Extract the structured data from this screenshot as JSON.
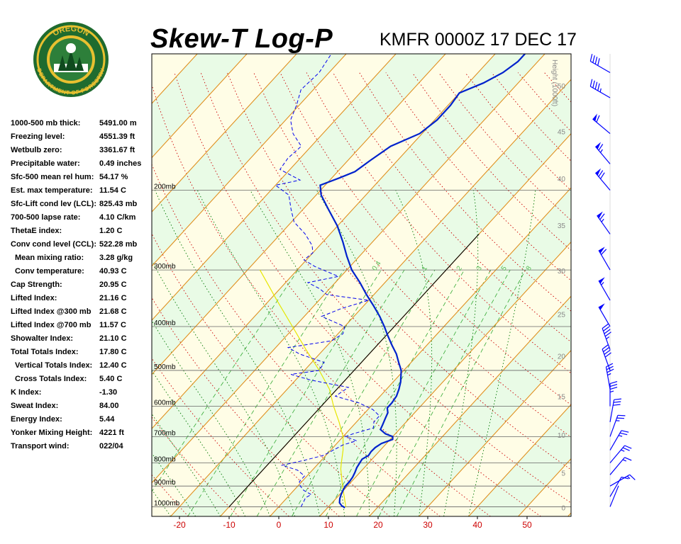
{
  "header": {
    "title": "Skew-T Log-P",
    "station": "KMFR 0000Z 17 DEC 17",
    "logo_top_text": "OREGON",
    "logo_bottom_text": "DEPARTMENT OF FORESTRY"
  },
  "indices": [
    {
      "label": "1000-500 mb thick:",
      "value": "5491.00 m"
    },
    {
      "label": "Freezing level:",
      "value": "4551.39 ft"
    },
    {
      "label": "Wetbulb zero:",
      "value": "3361.67 ft"
    },
    {
      "label": "Precipitable water:",
      "value": "0.49 inches"
    },
    {
      "label": "Sfc-500 mean rel hum:",
      "value": "54.17 %"
    },
    {
      "label": "Est. max temperature:",
      "value": "11.54 C"
    },
    {
      "label": "Sfc-Lift cond lev (LCL):",
      "value": "825.43 mb"
    },
    {
      "label": "700-500 lapse rate:",
      "value": "4.10 C/km"
    },
    {
      "label": "ThetaE index:",
      "value": "1.20 C"
    },
    {
      "label": "Conv cond level (CCL):",
      "value": "522.28 mb"
    },
    {
      "label": "Mean mixing ratio:",
      "value": "3.28 g/kg",
      "indent": true
    },
    {
      "label": "Conv temperature:",
      "value": "40.93 C",
      "indent": true
    },
    {
      "label": "Cap Strength:",
      "value": "20.95 C"
    },
    {
      "label": "Lifted Index:",
      "value": "21.16 C"
    },
    {
      "label": "Lifted Index @300 mb",
      "value": "21.68 C"
    },
    {
      "label": "Lifted Index @700 mb",
      "value": "11.57 C"
    },
    {
      "label": "Showalter Index:",
      "value": "21.10 C"
    },
    {
      "label": "Total Totals Index:",
      "value": "17.80 C"
    },
    {
      "label": "Vertical Totals Index:",
      "value": "12.40 C",
      "indent": true
    },
    {
      "label": "Cross Totals Index:",
      "value": "5.40 C",
      "indent": true
    },
    {
      "label": "K Index:",
      "value": "-1.30"
    },
    {
      "label": "Sweat Index:",
      "value": "84.00"
    },
    {
      "label": "Energy Index:",
      "value": "5.44"
    },
    {
      "label": "Yonker Mixing Height:",
      "value": "4221 ft"
    },
    {
      "label": "Transport wind:",
      "value": "022/04"
    }
  ],
  "chart_data": {
    "type": "skew-t log-p",
    "x_ticks": [
      -20,
      -10,
      0,
      10,
      20,
      30,
      40,
      50
    ],
    "pressure_levels": [
      {
        "p": 1000,
        "label": "1000mb"
      },
      {
        "p": 900,
        "label": "900mb"
      },
      {
        "p": 800,
        "label": "800mb"
      },
      {
        "p": 700,
        "label": "700mb"
      },
      {
        "p": 600,
        "label": "600mb"
      },
      {
        "p": 500,
        "label": "500mb"
      },
      {
        "p": 400,
        "label": "400mb"
      },
      {
        "p": 300,
        "label": "300mb"
      },
      {
        "p": 200,
        "label": "200mb"
      }
    ],
    "height_axis": {
      "label": "Height (1000ft)",
      "ticks": [
        {
          "p": 1008,
          "label": "0"
        },
        {
          "p": 845,
          "label": "5"
        },
        {
          "p": 696,
          "label": "10"
        },
        {
          "p": 572,
          "label": "15"
        },
        {
          "p": 466,
          "label": "20"
        },
        {
          "p": 377,
          "label": "25"
        },
        {
          "p": 302,
          "label": "30"
        },
        {
          "p": 240,
          "label": "35"
        },
        {
          "p": 189,
          "label": "40"
        },
        {
          "p": 149,
          "label": "45"
        },
        {
          "p": 118,
          "label": "50"
        }
      ]
    },
    "mixing_ratio_labels": [
      {
        "label": "0.4",
        "t": -24,
        "p": 302
      },
      {
        "label": "1",
        "t": -14,
        "p": 302
      },
      {
        "label": "2",
        "t": -7,
        "p": 302
      },
      {
        "label": "3",
        "t": -3,
        "p": 302
      },
      {
        "label": "5",
        "t": 2,
        "p": 302
      },
      {
        "label": "8",
        "t": 7,
        "p": 302
      }
    ],
    "temperature_profile": [
      {
        "p": 1005,
        "t": 13.5
      },
      {
        "p": 995,
        "t": 12.5
      },
      {
        "p": 980,
        "t": 11.5
      },
      {
        "p": 960,
        "t": 10.8
      },
      {
        "p": 940,
        "t": 10.3
      },
      {
        "p": 915,
        "t": 9.8
      },
      {
        "p": 900,
        "t": 9.6
      },
      {
        "p": 880,
        "t": 9.6
      },
      {
        "p": 860,
        "t": 9.4
      },
      {
        "p": 840,
        "t": 9.0
      },
      {
        "p": 820,
        "t": 8.5
      },
      {
        "p": 800,
        "t": 8.2
      },
      {
        "p": 785,
        "t": 8.0
      },
      {
        "p": 770,
        "t": 8.6
      },
      {
        "p": 755,
        "t": 8.4
      },
      {
        "p": 740,
        "t": 8.5
      },
      {
        "p": 725,
        "t": 9.0
      },
      {
        "p": 710,
        "t": 10.5
      },
      {
        "p": 700,
        "t": 10.0
      },
      {
        "p": 690,
        "t": 8.0
      },
      {
        "p": 675,
        "t": 6.2
      },
      {
        "p": 660,
        "t": 5.8
      },
      {
        "p": 640,
        "t": 5.2
      },
      {
        "p": 620,
        "t": 4.6
      },
      {
        "p": 605,
        "t": 3.6
      },
      {
        "p": 590,
        "t": 3.6
      },
      {
        "p": 570,
        "t": 3.3
      },
      {
        "p": 550,
        "t": 2.5
      },
      {
        "p": 530,
        "t": 1.5
      },
      {
        "p": 500,
        "t": -0.5
      },
      {
        "p": 480,
        "t": -2.5
      },
      {
        "p": 460,
        "t": -4.5
      },
      {
        "p": 440,
        "t": -7.0
      },
      {
        "p": 420,
        "t": -9.5
      },
      {
        "p": 400,
        "t": -12.0
      },
      {
        "p": 380,
        "t": -14.8
      },
      {
        "p": 360,
        "t": -18.0
      },
      {
        "p": 340,
        "t": -21.5
      },
      {
        "p": 320,
        "t": -25.0
      },
      {
        "p": 300,
        "t": -29.0
      },
      {
        "p": 280,
        "t": -32.5
      },
      {
        "p": 260,
        "t": -36.0
      },
      {
        "p": 240,
        "t": -40.0
      },
      {
        "p": 220,
        "t": -45.0
      },
      {
        "p": 205,
        "t": -49.0
      },
      {
        "p": 195,
        "t": -51.0
      },
      {
        "p": 188,
        "t": -48.5
      },
      {
        "p": 182,
        "t": -46.5
      },
      {
        "p": 172,
        "t": -45.5
      },
      {
        "p": 160,
        "t": -44.0
      },
      {
        "p": 150,
        "t": -40.5
      },
      {
        "p": 140,
        "t": -39.5
      },
      {
        "p": 130,
        "t": -39.5
      },
      {
        "p": 122,
        "t": -40.0
      },
      {
        "p": 116,
        "t": -37.0
      },
      {
        "p": 110,
        "t": -35.0
      },
      {
        "p": 104,
        "t": -34.0
      },
      {
        "p": 100,
        "t": -34.0
      }
    ],
    "dewpoint_profile": [
      {
        "p": 1000,
        "t": 4.5
      },
      {
        "p": 990,
        "t": 4.3
      },
      {
        "p": 970,
        "t": 4.0
      },
      {
        "p": 955,
        "t": 3.7
      },
      {
        "p": 940,
        "t": 4.3
      },
      {
        "p": 920,
        "t": 2.0
      },
      {
        "p": 900,
        "t": 0.5
      },
      {
        "p": 880,
        "t": -0.5
      },
      {
        "p": 855,
        "t": -0.5
      },
      {
        "p": 830,
        "t": -3.0
      },
      {
        "p": 810,
        "t": -7.0
      },
      {
        "p": 790,
        "t": -3.5
      },
      {
        "p": 770,
        "t": -0.5
      },
      {
        "p": 750,
        "t": 0.5
      },
      {
        "p": 730,
        "t": 1.5
      },
      {
        "p": 715,
        "t": 3.5
      },
      {
        "p": 700,
        "t": 0.5
      },
      {
        "p": 690,
        "t": 1.5
      },
      {
        "p": 670,
        "t": 4.5
      },
      {
        "p": 650,
        "t": 3.5
      },
      {
        "p": 630,
        "t": 3.5
      },
      {
        "p": 610,
        "t": 1.0
      },
      {
        "p": 590,
        "t": -3.0
      },
      {
        "p": 570,
        "t": -9.0
      },
      {
        "p": 545,
        "t": -8.0
      },
      {
        "p": 525,
        "t": -17.0
      },
      {
        "p": 510,
        "t": -22.0
      },
      {
        "p": 500,
        "t": -17.0
      },
      {
        "p": 480,
        "t": -17.5
      },
      {
        "p": 460,
        "t": -24.0
      },
      {
        "p": 445,
        "t": -27.5
      },
      {
        "p": 430,
        "t": -20.0
      },
      {
        "p": 415,
        "t": -19.0
      },
      {
        "p": 400,
        "t": -20.0
      },
      {
        "p": 380,
        "t": -26.5
      },
      {
        "p": 365,
        "t": -24.0
      },
      {
        "p": 350,
        "t": -20.0
      },
      {
        "p": 340,
        "t": -29.5
      },
      {
        "p": 330,
        "t": -32.0
      },
      {
        "p": 320,
        "t": -35.5
      },
      {
        "p": 310,
        "t": -30.5
      },
      {
        "p": 295,
        "t": -37.0
      },
      {
        "p": 285,
        "t": -40.5
      },
      {
        "p": 275,
        "t": -40.0
      },
      {
        "p": 265,
        "t": -41.5
      },
      {
        "p": 250,
        "t": -45.0
      },
      {
        "p": 235,
        "t": -49.5
      },
      {
        "p": 220,
        "t": -52.5
      },
      {
        "p": 205,
        "t": -55.5
      },
      {
        "p": 195,
        "t": -60.0
      },
      {
        "p": 190,
        "t": -56.0
      },
      {
        "p": 180,
        "t": -62.0
      },
      {
        "p": 170,
        "t": -62.5
      },
      {
        "p": 160,
        "t": -62.0
      },
      {
        "p": 150,
        "t": -66.0
      },
      {
        "p": 140,
        "t": -69.0
      },
      {
        "p": 130,
        "t": -70.5
      },
      {
        "p": 120,
        "t": -72.5
      },
      {
        "p": 110,
        "t": -72.0
      },
      {
        "p": 100,
        "t": -73.0
      }
    ],
    "parcel_path": [
      {
        "p": 1000,
        "t": 13.5
      },
      {
        "p": 900,
        "t": 9.0
      },
      {
        "p": 825,
        "t": 5.5
      },
      {
        "p": 800,
        "t": 4.5
      },
      {
        "p": 750,
        "t": 2.5
      },
      {
        "p": 700,
        "t": 0.0
      },
      {
        "p": 650,
        "t": -3.5
      },
      {
        "p": 600,
        "t": -7.5
      },
      {
        "p": 550,
        "t": -11.5
      },
      {
        "p": 500,
        "t": -17.0
      },
      {
        "p": 450,
        "t": -23.5
      },
      {
        "p": 400,
        "t": -30.5
      },
      {
        "p": 350,
        "t": -38.5
      },
      {
        "p": 300,
        "t": -47.5
      }
    ],
    "wind_profile": [
      {
        "p": 1000,
        "dir": 22,
        "spd": 4
      },
      {
        "p": 950,
        "dir": 30,
        "spd": 10
      },
      {
        "p": 900,
        "dir": 60,
        "spd": 15
      },
      {
        "p": 850,
        "dir": 40,
        "spd": 15
      },
      {
        "p": 800,
        "dir": 40,
        "spd": 25
      },
      {
        "p": 750,
        "dir": 30,
        "spd": 25
      },
      {
        "p": 700,
        "dir": 20,
        "spd": 25
      },
      {
        "p": 650,
        "dir": 10,
        "spd": 30
      },
      {
        "p": 600,
        "dir": 360,
        "spd": 35
      },
      {
        "p": 550,
        "dir": 350,
        "spd": 35
      },
      {
        "p": 500,
        "dir": 340,
        "spd": 40
      },
      {
        "p": 450,
        "dir": 340,
        "spd": 45
      },
      {
        "p": 400,
        "dir": 330,
        "spd": 50
      },
      {
        "p": 350,
        "dir": 330,
        "spd": 55
      },
      {
        "p": 300,
        "dir": 330,
        "spd": 60
      },
      {
        "p": 250,
        "dir": 325,
        "spd": 65
      },
      {
        "p": 200,
        "dir": 320,
        "spd": 70
      },
      {
        "p": 175,
        "dir": 320,
        "spd": 65
      },
      {
        "p": 150,
        "dir": 310,
        "spd": 60
      },
      {
        "p": 125,
        "dir": 300,
        "spd": 45
      },
      {
        "p": 110,
        "dir": 300,
        "spd": 40
      }
    ],
    "colors": {
      "temperature": "#0022cc",
      "dewpoint": "#0000ee",
      "parcel": "#e6e600",
      "isotherm": "#e09020",
      "dry_adiabat": "#cc0000",
      "moist_adiabat": "#007700",
      "mixing_ratio": "#33aa33",
      "band_a": "#fffde6",
      "band_b": "#e9fbe6",
      "tick_label": "#cc0000",
      "wind_barb": "#0000ff"
    }
  }
}
